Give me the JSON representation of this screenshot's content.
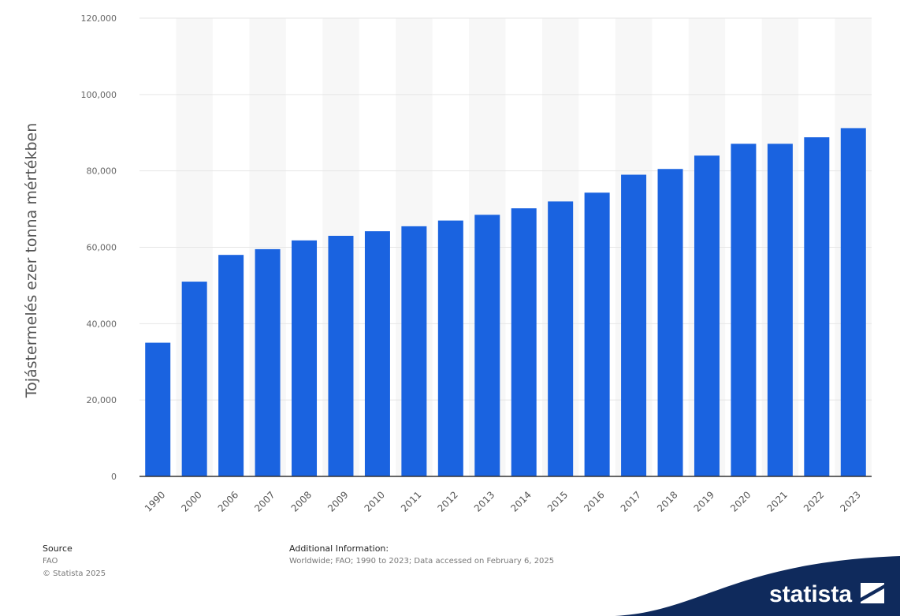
{
  "chart_data": {
    "type": "bar",
    "categories": [
      "1990",
      "2000",
      "2006",
      "2007",
      "2008",
      "2009",
      "2010",
      "2011",
      "2012",
      "2013",
      "2014",
      "2015",
      "2016",
      "2017",
      "2018",
      "2019",
      "2020",
      "2021",
      "2022",
      "2023"
    ],
    "values": [
      35000,
      51000,
      58000,
      59500,
      61800,
      63000,
      64200,
      65500,
      67000,
      68500,
      70200,
      72000,
      74300,
      79000,
      80500,
      84000,
      87100,
      87100,
      88800,
      91200
    ],
    "ylabel": "Tojástermelés ezer tonna mértékben",
    "xlabel": "",
    "ylim": [
      0,
      120000
    ],
    "yticks": [
      "0",
      "20,000",
      "40,000",
      "60,000",
      "80,000",
      "100,000",
      "120,000"
    ],
    "grid": true,
    "bar_color": "#1a63e0"
  },
  "footer": {
    "source_title": "Source",
    "source_lines": [
      "FAO",
      "© Statista 2025"
    ],
    "additional_title": "Additional Information:",
    "additional_text": "Worldwide; FAO; 1990 to 2023; Data accessed on February 6, 2025"
  },
  "brand": {
    "name": "statista",
    "color": "#0f2a5c"
  }
}
